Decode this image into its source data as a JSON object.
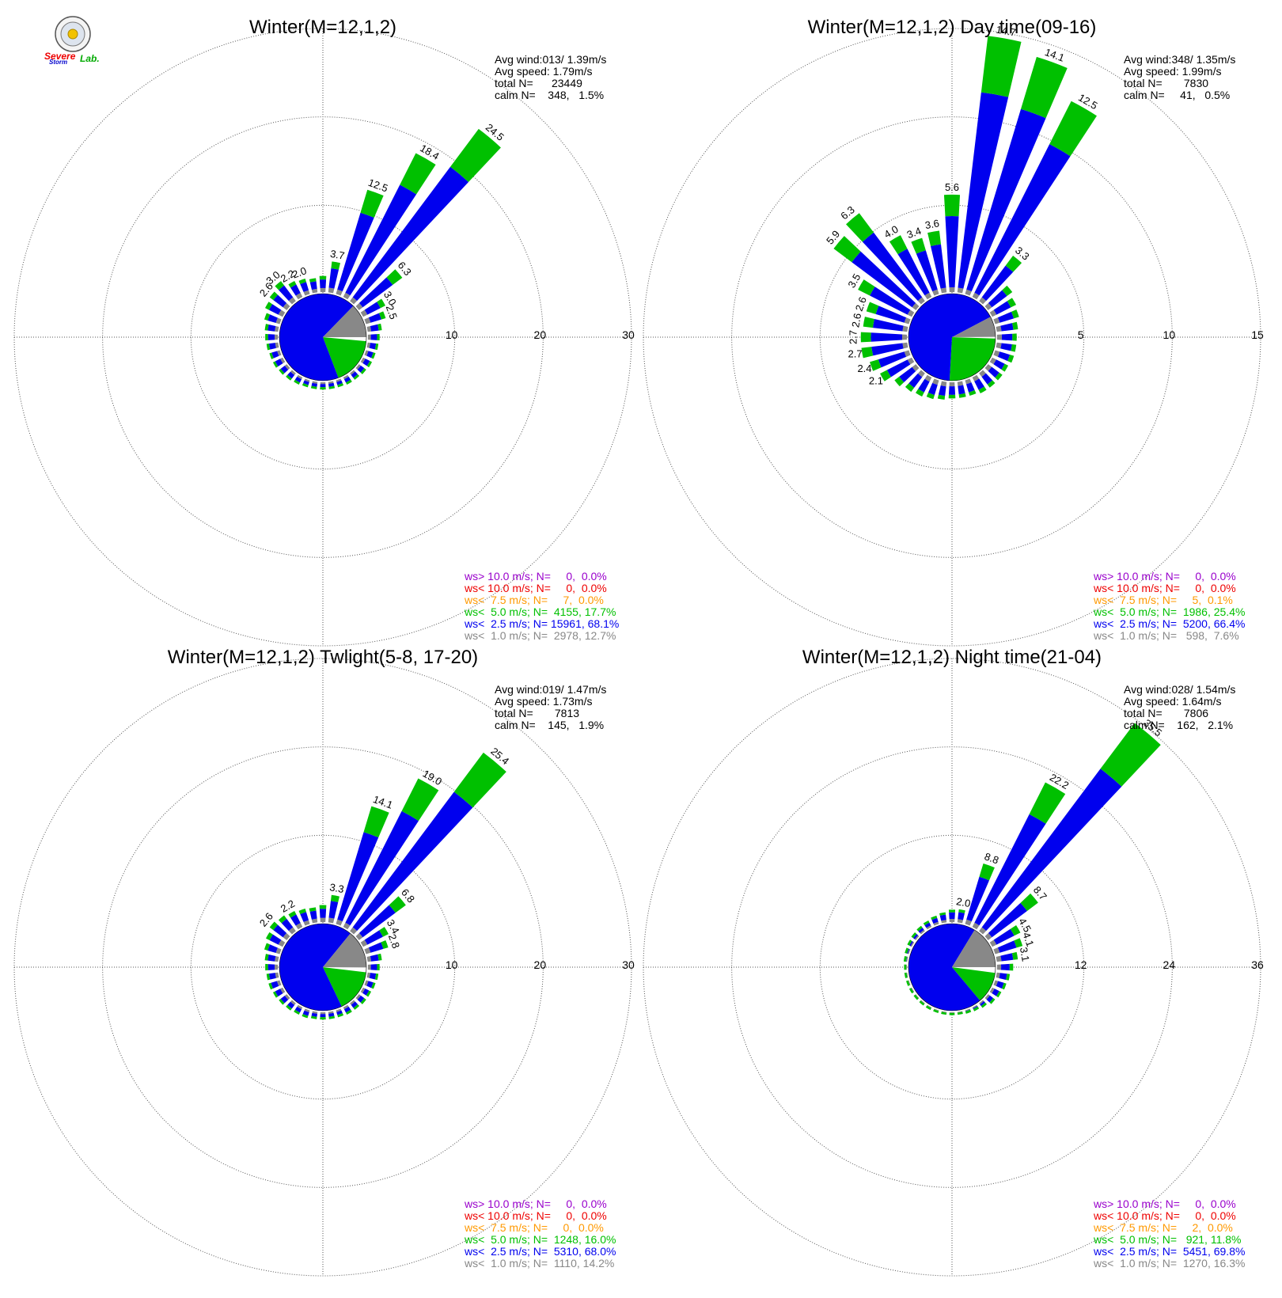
{
  "logo": {
    "text_severe": "Severe",
    "text_storm": "Storm",
    "text_lab": "Lab."
  },
  "colors": {
    "calm": "#ffffff",
    "ws1": "#888888",
    "ws2_5": "#0000ee",
    "ws5": "#00c000",
    "ws7_5": "#ff9900",
    "ws10lt": "#ee0000",
    "ws10gt": "#9900cc"
  },
  "chart_data": [
    {
      "type": "wind-rose",
      "title": "Winter(M=12,1,2)",
      "rlim": [
        0,
        30
      ],
      "ring_ticks": [
        "10",
        "20",
        "30"
      ],
      "stats": [
        "Avg wind:013/ 1.39m/s",
        "Avg speed: 1.79m/s",
        "total N=      23449",
        "calm N=    348,   1.5%"
      ],
      "legend": [
        {
          "text": "ws> 10.0 m/s; N=     0,  0.0%",
          "color": "#9900cc"
        },
        {
          "text": "ws< 10.0 m/s; N=     0,  0.0%",
          "color": "#ee0000"
        },
        {
          "text": "ws<  7.5 m/s; N=     7,  0.0%",
          "color": "#ff9900"
        },
        {
          "text": "ws<  5.0 m/s; N=  4155, 17.7%",
          "color": "#00c000"
        },
        {
          "text": "ws<  2.5 m/s; N= 15961, 68.1%",
          "color": "#0000ee"
        },
        {
          "text": "ws<  1.0 m/s; N=  2978, 12.7%",
          "color": "#888888"
        }
      ],
      "pie": [
        {
          "bin": "calm",
          "percent": 1.5
        },
        {
          "bin": "ws5",
          "percent": 17.7
        },
        {
          "bin": "ws2_5",
          "percent": 68.1
        },
        {
          "bin": "ws1",
          "percent": 12.7
        }
      ],
      "directions": [
        {
          "dir": 10,
          "total": 3.7,
          "label": "3.7"
        },
        {
          "dir": 20,
          "total": 12.5,
          "label": "12.5"
        },
        {
          "dir": 30,
          "total": 18.4,
          "label": "18.4"
        },
        {
          "dir": 40,
          "total": 24.5,
          "label": "24.5"
        },
        {
          "dir": 50,
          "total": 6.3,
          "label": "6.3"
        },
        {
          "dir": 60,
          "total": 3.0,
          "label": "3.0"
        },
        {
          "dir": 70,
          "total": 2.5,
          "label": "2.5"
        },
        {
          "dir": 80,
          "total": 1.8,
          "label": ""
        },
        {
          "dir": 90,
          "total": 1.5,
          "label": ""
        },
        {
          "dir": 100,
          "total": 1.4,
          "label": ""
        },
        {
          "dir": 110,
          "total": 1.3,
          "label": ""
        },
        {
          "dir": 120,
          "total": 1.3,
          "label": ""
        },
        {
          "dir": 130,
          "total": 1.2,
          "label": ""
        },
        {
          "dir": 140,
          "total": 1.1,
          "label": ""
        },
        {
          "dir": 150,
          "total": 1.1,
          "label": ""
        },
        {
          "dir": 160,
          "total": 1.0,
          "label": ""
        },
        {
          "dir": 170,
          "total": 1.0,
          "label": ""
        },
        {
          "dir": 180,
          "total": 1.0,
          "label": ""
        },
        {
          "dir": 190,
          "total": 1.0,
          "label": ""
        },
        {
          "dir": 200,
          "total": 1.0,
          "label": ""
        },
        {
          "dir": 210,
          "total": 1.1,
          "label": ""
        },
        {
          "dir": 220,
          "total": 1.2,
          "label": ""
        },
        {
          "dir": 230,
          "total": 1.3,
          "label": ""
        },
        {
          "dir": 240,
          "total": 1.4,
          "label": ""
        },
        {
          "dir": 250,
          "total": 1.4,
          "label": ""
        },
        {
          "dir": 260,
          "total": 1.5,
          "label": ""
        },
        {
          "dir": 270,
          "total": 1.6,
          "label": ""
        },
        {
          "dir": 280,
          "total": 1.7,
          "label": ""
        },
        {
          "dir": 290,
          "total": 2.0,
          "label": ""
        },
        {
          "dir": 300,
          "total": 2.4,
          "label": ""
        },
        {
          "dir": 310,
          "total": 2.6,
          "label": "2.6"
        },
        {
          "dir": 320,
          "total": 3.0,
          "label": "3.0"
        },
        {
          "dir": 330,
          "total": 2.2,
          "label": "2.2"
        },
        {
          "dir": 340,
          "total": 2.0,
          "label": "2.0"
        },
        {
          "dir": 350,
          "total": 1.8,
          "label": ""
        },
        {
          "dir": 360,
          "total": 2.0,
          "label": ""
        }
      ]
    },
    {
      "type": "wind-rose",
      "title": "Winter(M=12,1,2) Day time(09-16)",
      "rlim": [
        0,
        15
      ],
      "ring_ticks": [
        "5",
        "10",
        "15"
      ],
      "stats": [
        "Avg wind:348/ 1.35m/s",
        "Avg speed: 1.99m/s",
        "total N=       7830",
        "calm N=     41,   0.5%"
      ],
      "legend": [
        {
          "text": "ws> 10.0 m/s; N=     0,  0.0%",
          "color": "#9900cc"
        },
        {
          "text": "ws< 10.0 m/s; N=     0,  0.0%",
          "color": "#ee0000"
        },
        {
          "text": "ws<  7.5 m/s; N=     5,  0.1%",
          "color": "#ff9900"
        },
        {
          "text": "ws<  5.0 m/s; N=  1986, 25.4%",
          "color": "#00c000"
        },
        {
          "text": "ws<  2.5 m/s; N=  5200, 66.4%",
          "color": "#0000ee"
        },
        {
          "text": "ws<  1.0 m/s; N=   598,  7.6%",
          "color": "#888888"
        }
      ],
      "pie": [
        {
          "bin": "calm",
          "percent": 0.5
        },
        {
          "bin": "ws5",
          "percent": 25.4
        },
        {
          "bin": "ws2_5",
          "percent": 66.4
        },
        {
          "bin": "ws1",
          "percent": 7.6
        }
      ],
      "directions": [
        {
          "dir": 10,
          "total": 14.7,
          "label": "14.7"
        },
        {
          "dir": 20,
          "total": 14.1,
          "label": "14.1"
        },
        {
          "dir": 30,
          "total": 12.5,
          "label": "12.5"
        },
        {
          "dir": 40,
          "total": 3.3,
          "label": "3.3"
        },
        {
          "dir": 50,
          "total": 1.8,
          "label": ""
        },
        {
          "dir": 60,
          "total": 1.6,
          "label": ""
        },
        {
          "dir": 70,
          "total": 1.5,
          "label": ""
        },
        {
          "dir": 80,
          "total": 1.3,
          "label": ""
        },
        {
          "dir": 90,
          "total": 1.2,
          "label": ""
        },
        {
          "dir": 100,
          "total": 1.2,
          "label": ""
        },
        {
          "dir": 110,
          "total": 1.2,
          "label": ""
        },
        {
          "dir": 120,
          "total": 1.1,
          "label": ""
        },
        {
          "dir": 130,
          "total": 1.1,
          "label": ""
        },
        {
          "dir": 140,
          "total": 1.1,
          "label": ""
        },
        {
          "dir": 150,
          "total": 1.1,
          "label": ""
        },
        {
          "dir": 160,
          "total": 1.0,
          "label": ""
        },
        {
          "dir": 170,
          "total": 1.0,
          "label": ""
        },
        {
          "dir": 180,
          "total": 1.0,
          "label": ""
        },
        {
          "dir": 190,
          "total": 1.1,
          "label": ""
        },
        {
          "dir": 200,
          "total": 1.2,
          "label": ""
        },
        {
          "dir": 210,
          "total": 1.3,
          "label": ""
        },
        {
          "dir": 220,
          "total": 1.4,
          "label": ""
        },
        {
          "dir": 230,
          "total": 1.6,
          "label": ""
        },
        {
          "dir": 240,
          "total": 2.1,
          "label": "2.1"
        },
        {
          "dir": 250,
          "total": 2.4,
          "label": "2.4"
        },
        {
          "dir": 260,
          "total": 2.7,
          "label": "2.7"
        },
        {
          "dir": 270,
          "total": 2.7,
          "label": "2.7"
        },
        {
          "dir": 280,
          "total": 2.6,
          "label": "2.6"
        },
        {
          "dir": 290,
          "total": 2.6,
          "label": "2.6"
        },
        {
          "dir": 300,
          "total": 3.5,
          "label": "3.5"
        },
        {
          "dir": 310,
          "total": 5.9,
          "label": "5.9"
        },
        {
          "dir": 320,
          "total": 6.3,
          "label": "6.3"
        },
        {
          "dir": 330,
          "total": 4.0,
          "label": "4.0"
        },
        {
          "dir": 340,
          "total": 3.4,
          "label": "3.4"
        },
        {
          "dir": 350,
          "total": 3.6,
          "label": "3.6"
        },
        {
          "dir": 360,
          "total": 5.6,
          "label": "5.6"
        }
      ]
    },
    {
      "type": "wind-rose",
      "title": "Winter(M=12,1,2) Twlight(5-8, 17-20)",
      "rlim": [
        0,
        30
      ],
      "ring_ticks": [
        "10",
        "20",
        "30"
      ],
      "stats": [
        "Avg wind:019/ 1.47m/s",
        "Avg speed: 1.73m/s",
        "total N=       7813",
        "calm N=    145,   1.9%"
      ],
      "legend": [
        {
          "text": "ws> 10.0 m/s; N=     0,  0.0%",
          "color": "#9900cc"
        },
        {
          "text": "ws< 10.0 m/s; N=     0,  0.0%",
          "color": "#ee0000"
        },
        {
          "text": "ws<  7.5 m/s; N=     0,  0.0%",
          "color": "#ff9900"
        },
        {
          "text": "ws<  5.0 m/s; N=  1248, 16.0%",
          "color": "#00c000"
        },
        {
          "text": "ws<  2.5 m/s; N=  5310, 68.0%",
          "color": "#0000ee"
        },
        {
          "text": "ws<  1.0 m/s; N=  1110, 14.2%",
          "color": "#888888"
        }
      ],
      "pie": [
        {
          "bin": "calm",
          "percent": 1.9
        },
        {
          "bin": "ws5",
          "percent": 16.0
        },
        {
          "bin": "ws2_5",
          "percent": 68.0
        },
        {
          "bin": "ws1",
          "percent": 14.2
        }
      ],
      "directions": [
        {
          "dir": 10,
          "total": 3.3,
          "label": "3.3"
        },
        {
          "dir": 20,
          "total": 14.1,
          "label": "14.1"
        },
        {
          "dir": 30,
          "total": 19.0,
          "label": "19.0"
        },
        {
          "dir": 40,
          "total": 25.4,
          "label": "25.4"
        },
        {
          "dir": 50,
          "total": 6.8,
          "label": "6.8"
        },
        {
          "dir": 60,
          "total": 3.4,
          "label": "3.4"
        },
        {
          "dir": 70,
          "total": 2.8,
          "label": "2.8"
        },
        {
          "dir": 80,
          "total": 1.8,
          "label": ""
        },
        {
          "dir": 90,
          "total": 1.5,
          "label": ""
        },
        {
          "dir": 100,
          "total": 1.4,
          "label": ""
        },
        {
          "dir": 110,
          "total": 1.3,
          "label": ""
        },
        {
          "dir": 120,
          "total": 1.2,
          "label": ""
        },
        {
          "dir": 130,
          "total": 1.2,
          "label": ""
        },
        {
          "dir": 140,
          "total": 1.1,
          "label": ""
        },
        {
          "dir": 150,
          "total": 1.1,
          "label": ""
        },
        {
          "dir": 160,
          "total": 1.0,
          "label": ""
        },
        {
          "dir": 170,
          "total": 1.0,
          "label": ""
        },
        {
          "dir": 180,
          "total": 1.0,
          "label": ""
        },
        {
          "dir": 190,
          "total": 1.0,
          "label": ""
        },
        {
          "dir": 200,
          "total": 1.1,
          "label": ""
        },
        {
          "dir": 210,
          "total": 1.1,
          "label": ""
        },
        {
          "dir": 220,
          "total": 1.2,
          "label": ""
        },
        {
          "dir": 230,
          "total": 1.3,
          "label": ""
        },
        {
          "dir": 240,
          "total": 1.4,
          "label": ""
        },
        {
          "dir": 250,
          "total": 1.5,
          "label": ""
        },
        {
          "dir": 260,
          "total": 1.5,
          "label": ""
        },
        {
          "dir": 270,
          "total": 1.6,
          "label": ""
        },
        {
          "dir": 280,
          "total": 1.7,
          "label": ""
        },
        {
          "dir": 290,
          "total": 2.0,
          "label": ""
        },
        {
          "dir": 300,
          "total": 2.3,
          "label": ""
        },
        {
          "dir": 310,
          "total": 2.6,
          "label": "2.6"
        },
        {
          "dir": 320,
          "total": 2.4,
          "label": ""
        },
        {
          "dir": 330,
          "total": 2.2,
          "label": "2.2"
        },
        {
          "dir": 340,
          "total": 2.0,
          "label": ""
        },
        {
          "dir": 350,
          "total": 1.9,
          "label": ""
        },
        {
          "dir": 360,
          "total": 2.1,
          "label": ""
        }
      ]
    },
    {
      "type": "wind-rose",
      "title": "Winter(M=12,1,2) Night time(21-04)",
      "rlim": [
        0,
        36
      ],
      "ring_ticks": [
        "12",
        "24",
        "36"
      ],
      "stats": [
        "Avg wind:028/ 1.54m/s",
        "Avg speed: 1.64m/s",
        "total N=       7806",
        "calm N=    162,   2.1%"
      ],
      "legend": [
        {
          "text": "ws> 10.0 m/s; N=     0,  0.0%",
          "color": "#9900cc"
        },
        {
          "text": "ws< 10.0 m/s; N=     0,  0.0%",
          "color": "#ee0000"
        },
        {
          "text": "ws<  7.5 m/s; N=     2,  0.0%",
          "color": "#ff9900"
        },
        {
          "text": "ws<  5.0 m/s; N=   921, 11.8%",
          "color": "#00c000"
        },
        {
          "text": "ws<  2.5 m/s; N=  5451, 69.8%",
          "color": "#0000ee"
        },
        {
          "text": "ws<  1.0 m/s; N=  1270, 16.3%",
          "color": "#888888"
        }
      ],
      "pie": [
        {
          "bin": "calm",
          "percent": 2.1
        },
        {
          "bin": "ws5",
          "percent": 11.8
        },
        {
          "bin": "ws2_5",
          "percent": 69.8
        },
        {
          "bin": "ws1",
          "percent": 16.3
        }
      ],
      "directions": [
        {
          "dir": 10,
          "total": 2.0,
          "label": "2.0"
        },
        {
          "dir": 20,
          "total": 8.8,
          "label": "8.8"
        },
        {
          "dir": 30,
          "total": 22.2,
          "label": "22.2"
        },
        {
          "dir": 40,
          "total": 35.5,
          "label": "35.5"
        },
        {
          "dir": 50,
          "total": 8.7,
          "label": "8.7"
        },
        {
          "dir": 60,
          "total": 4.5,
          "label": "4.5"
        },
        {
          "dir": 70,
          "total": 4.1,
          "label": "4.1"
        },
        {
          "dir": 80,
          "total": 3.1,
          "label": "3.1"
        },
        {
          "dir": 90,
          "total": 2.4,
          "label": ""
        },
        {
          "dir": 100,
          "total": 2.0,
          "label": ""
        },
        {
          "dir": 110,
          "total": 1.8,
          "label": ""
        },
        {
          "dir": 120,
          "total": 1.6,
          "label": ""
        },
        {
          "dir": 130,
          "total": 1.4,
          "label": ""
        },
        {
          "dir": 140,
          "total": 1.0,
          "label": ""
        },
        {
          "dir": 150,
          "total": 0.8,
          "label": ""
        },
        {
          "dir": 160,
          "total": 0.7,
          "label": ""
        },
        {
          "dir": 170,
          "total": 0.6,
          "label": ""
        },
        {
          "dir": 180,
          "total": 0.6,
          "label": ""
        },
        {
          "dir": 190,
          "total": 0.6,
          "label": ""
        },
        {
          "dir": 200,
          "total": 0.6,
          "label": ""
        },
        {
          "dir": 210,
          "total": 0.6,
          "label": ""
        },
        {
          "dir": 220,
          "total": 0.6,
          "label": ""
        },
        {
          "dir": 230,
          "total": 0.6,
          "label": ""
        },
        {
          "dir": 240,
          "total": 0.6,
          "label": ""
        },
        {
          "dir": 250,
          "total": 0.6,
          "label": ""
        },
        {
          "dir": 260,
          "total": 0.6,
          "label": ""
        },
        {
          "dir": 270,
          "total": 0.6,
          "label": ""
        },
        {
          "dir": 280,
          "total": 0.7,
          "label": ""
        },
        {
          "dir": 290,
          "total": 0.8,
          "label": ""
        },
        {
          "dir": 300,
          "total": 0.9,
          "label": ""
        },
        {
          "dir": 310,
          "total": 1.0,
          "label": ""
        },
        {
          "dir": 320,
          "total": 1.1,
          "label": ""
        },
        {
          "dir": 330,
          "total": 1.2,
          "label": ""
        },
        {
          "dir": 340,
          "total": 1.4,
          "label": ""
        },
        {
          "dir": 350,
          "total": 1.6,
          "label": ""
        },
        {
          "dir": 360,
          "total": 1.9,
          "label": ""
        }
      ]
    }
  ]
}
